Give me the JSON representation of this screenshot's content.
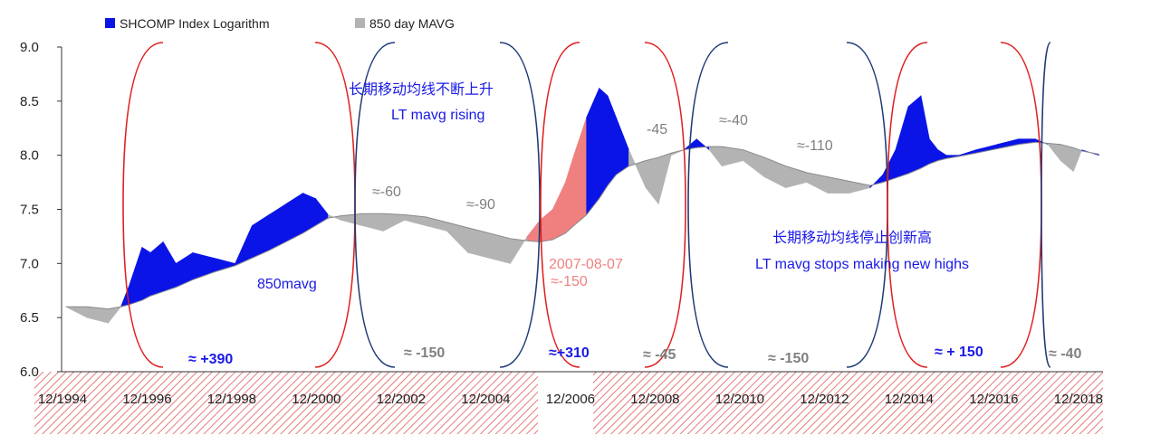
{
  "chart_data": {
    "type": "area",
    "ylim": [
      6.0,
      9.0
    ],
    "xlim": [
      1994.9,
      2019.5
    ],
    "yticks": [
      "6.0",
      "6.5",
      "7.0",
      "7.5",
      "8.0",
      "8.5",
      "9.0"
    ],
    "xticks": [
      "12/1994",
      "12/1996",
      "12/1998",
      "12/2000",
      "12/2002",
      "12/2004",
      "12/2006",
      "12/2008",
      "12/2010",
      "12/2012",
      "12/2014",
      "12/2016",
      "12/2018"
    ],
    "series": [
      {
        "name": "SHCOMP Index Logarithm",
        "color": "#0a14e6"
      },
      {
        "name": "850 day MAVG",
        "color": "#b3b3b3"
      }
    ],
    "years": [
      1995.0,
      1995.5,
      1996.0,
      1996.3,
      1996.5,
      1996.8,
      1997.0,
      1997.3,
      1997.6,
      1998.0,
      1998.5,
      1999.0,
      1999.4,
      1999.8,
      2000.2,
      2000.6,
      2000.9,
      2001.2,
      2001.5,
      2002.0,
      2002.5,
      2003.0,
      2003.5,
      2004.0,
      2004.5,
      2005.0,
      2005.5,
      2005.9,
      2006.2,
      2006.5,
      2006.8,
      2007.0,
      2007.3,
      2007.6,
      2007.8,
      2008.0,
      2008.3,
      2008.7,
      2009.0,
      2009.3,
      2009.6,
      2009.9,
      2010.2,
      2010.5,
      2011.0,
      2011.5,
      2012.0,
      2012.5,
      2013.0,
      2013.5,
      2014.0,
      2014.3,
      2014.6,
      2014.9,
      2015.2,
      2015.4,
      2015.6,
      2015.8,
      2016.1,
      2016.5,
      2017.0,
      2017.5,
      2017.9,
      2018.2,
      2018.5,
      2018.8,
      2019.0,
      2019.4
    ],
    "index_log": [
      6.6,
      6.5,
      6.45,
      6.6,
      6.8,
      7.15,
      7.1,
      7.2,
      7.0,
      7.1,
      7.05,
      7.0,
      7.35,
      7.45,
      7.55,
      7.65,
      7.6,
      7.45,
      7.4,
      7.35,
      7.3,
      7.4,
      7.35,
      7.3,
      7.1,
      7.05,
      7.0,
      7.25,
      7.4,
      7.5,
      7.75,
      8.0,
      8.35,
      8.62,
      8.55,
      8.35,
      8.05,
      7.7,
      7.55,
      8.0,
      8.05,
      8.15,
      8.05,
      7.9,
      7.95,
      7.8,
      7.7,
      7.75,
      7.65,
      7.65,
      7.7,
      7.82,
      8.05,
      8.45,
      8.55,
      8.15,
      8.05,
      8.0,
      8.0,
      8.05,
      8.1,
      8.15,
      8.15,
      8.1,
      7.95,
      7.85,
      8.05,
      8.0
    ],
    "mavg_850": [
      6.6,
      6.6,
      6.58,
      6.6,
      6.62,
      6.66,
      6.7,
      6.74,
      6.78,
      6.85,
      6.92,
      6.98,
      7.05,
      7.12,
      7.2,
      7.28,
      7.35,
      7.42,
      7.44,
      7.46,
      7.46,
      7.45,
      7.43,
      7.38,
      7.33,
      7.28,
      7.23,
      7.21,
      7.2,
      7.22,
      7.28,
      7.35,
      7.45,
      7.6,
      7.72,
      7.82,
      7.9,
      7.95,
      7.98,
      8.02,
      8.05,
      8.07,
      8.08,
      8.08,
      8.05,
      7.98,
      7.9,
      7.84,
      7.8,
      7.76,
      7.72,
      7.75,
      7.79,
      7.83,
      7.88,
      7.92,
      7.95,
      7.97,
      7.99,
      8.02,
      8.06,
      8.1,
      8.12,
      8.11,
      8.1,
      8.07,
      8.04,
      8.01
    ],
    "legend_position": "top-left",
    "grid": false
  },
  "annotations": {
    "rising_cn": "长期移动均线不断上升",
    "rising_en": "LT mavg rising",
    "stops_cn": "长期移动均线停止创新高",
    "stops_en": "LT mavg stops making new highs",
    "mavg_label": "850mavg",
    "date_label": "2007-08-07",
    "date_value": "≈-150",
    "v_m60": "≈-60",
    "v_m90": "≈-90",
    "v_m45_top": "-45",
    "v_m40_top": "≈-40",
    "v_m110": "≈-110",
    "b_390": "≈ +390",
    "b_m150_1": "≈ -150",
    "b_310": "≈+310",
    "b_m45": "≈ -45",
    "b_m150_2": "≈ -150",
    "b_150": "≈ + 150",
    "b_m40": "≈ -40"
  },
  "colors": {
    "index": "#0a14e6",
    "mavg": "#b3b3b3",
    "red": "#e02020",
    "navy": "#1f3c78",
    "pink": "#f08080",
    "hatch": "#e67a7a",
    "text_blue": "#1a1ae6",
    "text_gray": "#808080"
  }
}
